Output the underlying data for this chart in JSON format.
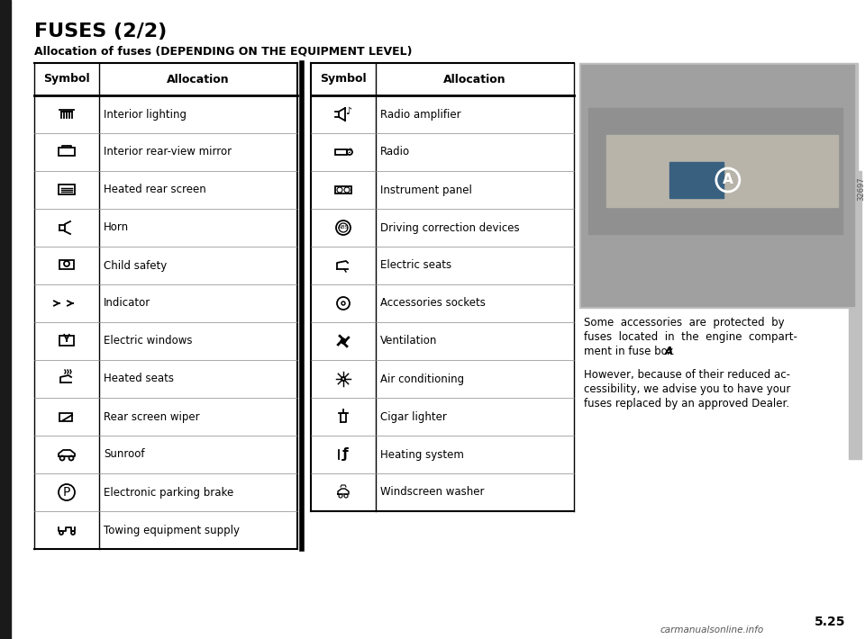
{
  "title": "FUSES (2/2)",
  "subtitle": "Allocation of fuses (DEPENDING ON THE EQUIPMENT LEVEL)",
  "table1_headers": [
    "Symbol",
    "Allocation"
  ],
  "table1_rows": [
    [
      "interior_lighting",
      "Interior lighting"
    ],
    [
      "rear_mirror",
      "Interior rear-view mirror"
    ],
    [
      "heated_rear",
      "Heated rear screen"
    ],
    [
      "horn",
      "Horn"
    ],
    [
      "child_safety",
      "Child safety"
    ],
    [
      "indicator",
      "Indicator"
    ],
    [
      "electric_windows",
      "Electric windows"
    ],
    [
      "heated_seats",
      "Heated seats"
    ],
    [
      "rear_wiper",
      "Rear screen wiper"
    ],
    [
      "sunroof",
      "Sunroof"
    ],
    [
      "parking_brake",
      "Electronic parking brake"
    ],
    [
      "towing",
      "Towing equipment supply"
    ]
  ],
  "table2_headers": [
    "Symbol",
    "Allocation"
  ],
  "table2_rows": [
    [
      "radio_amp",
      "Radio amplifier"
    ],
    [
      "radio",
      "Radio"
    ],
    [
      "instrument",
      "Instrument panel"
    ],
    [
      "driving_corr",
      "Driving correction devices"
    ],
    [
      "elec_seats",
      "Electric seats"
    ],
    [
      "acc_sockets",
      "Accessories sockets"
    ],
    [
      "ventilation",
      "Ventilation"
    ],
    [
      "air_cond",
      "Air conditioning"
    ],
    [
      "cigar",
      "Cigar lighter"
    ],
    [
      "heating",
      "Heating system"
    ],
    [
      "washer",
      "Windscreen washer"
    ]
  ],
  "page_number": "5.25",
  "watermark": "carmanualsonline.info",
  "bg_color": "#ffffff",
  "text_color": "#000000",
  "line_color": "#000000"
}
